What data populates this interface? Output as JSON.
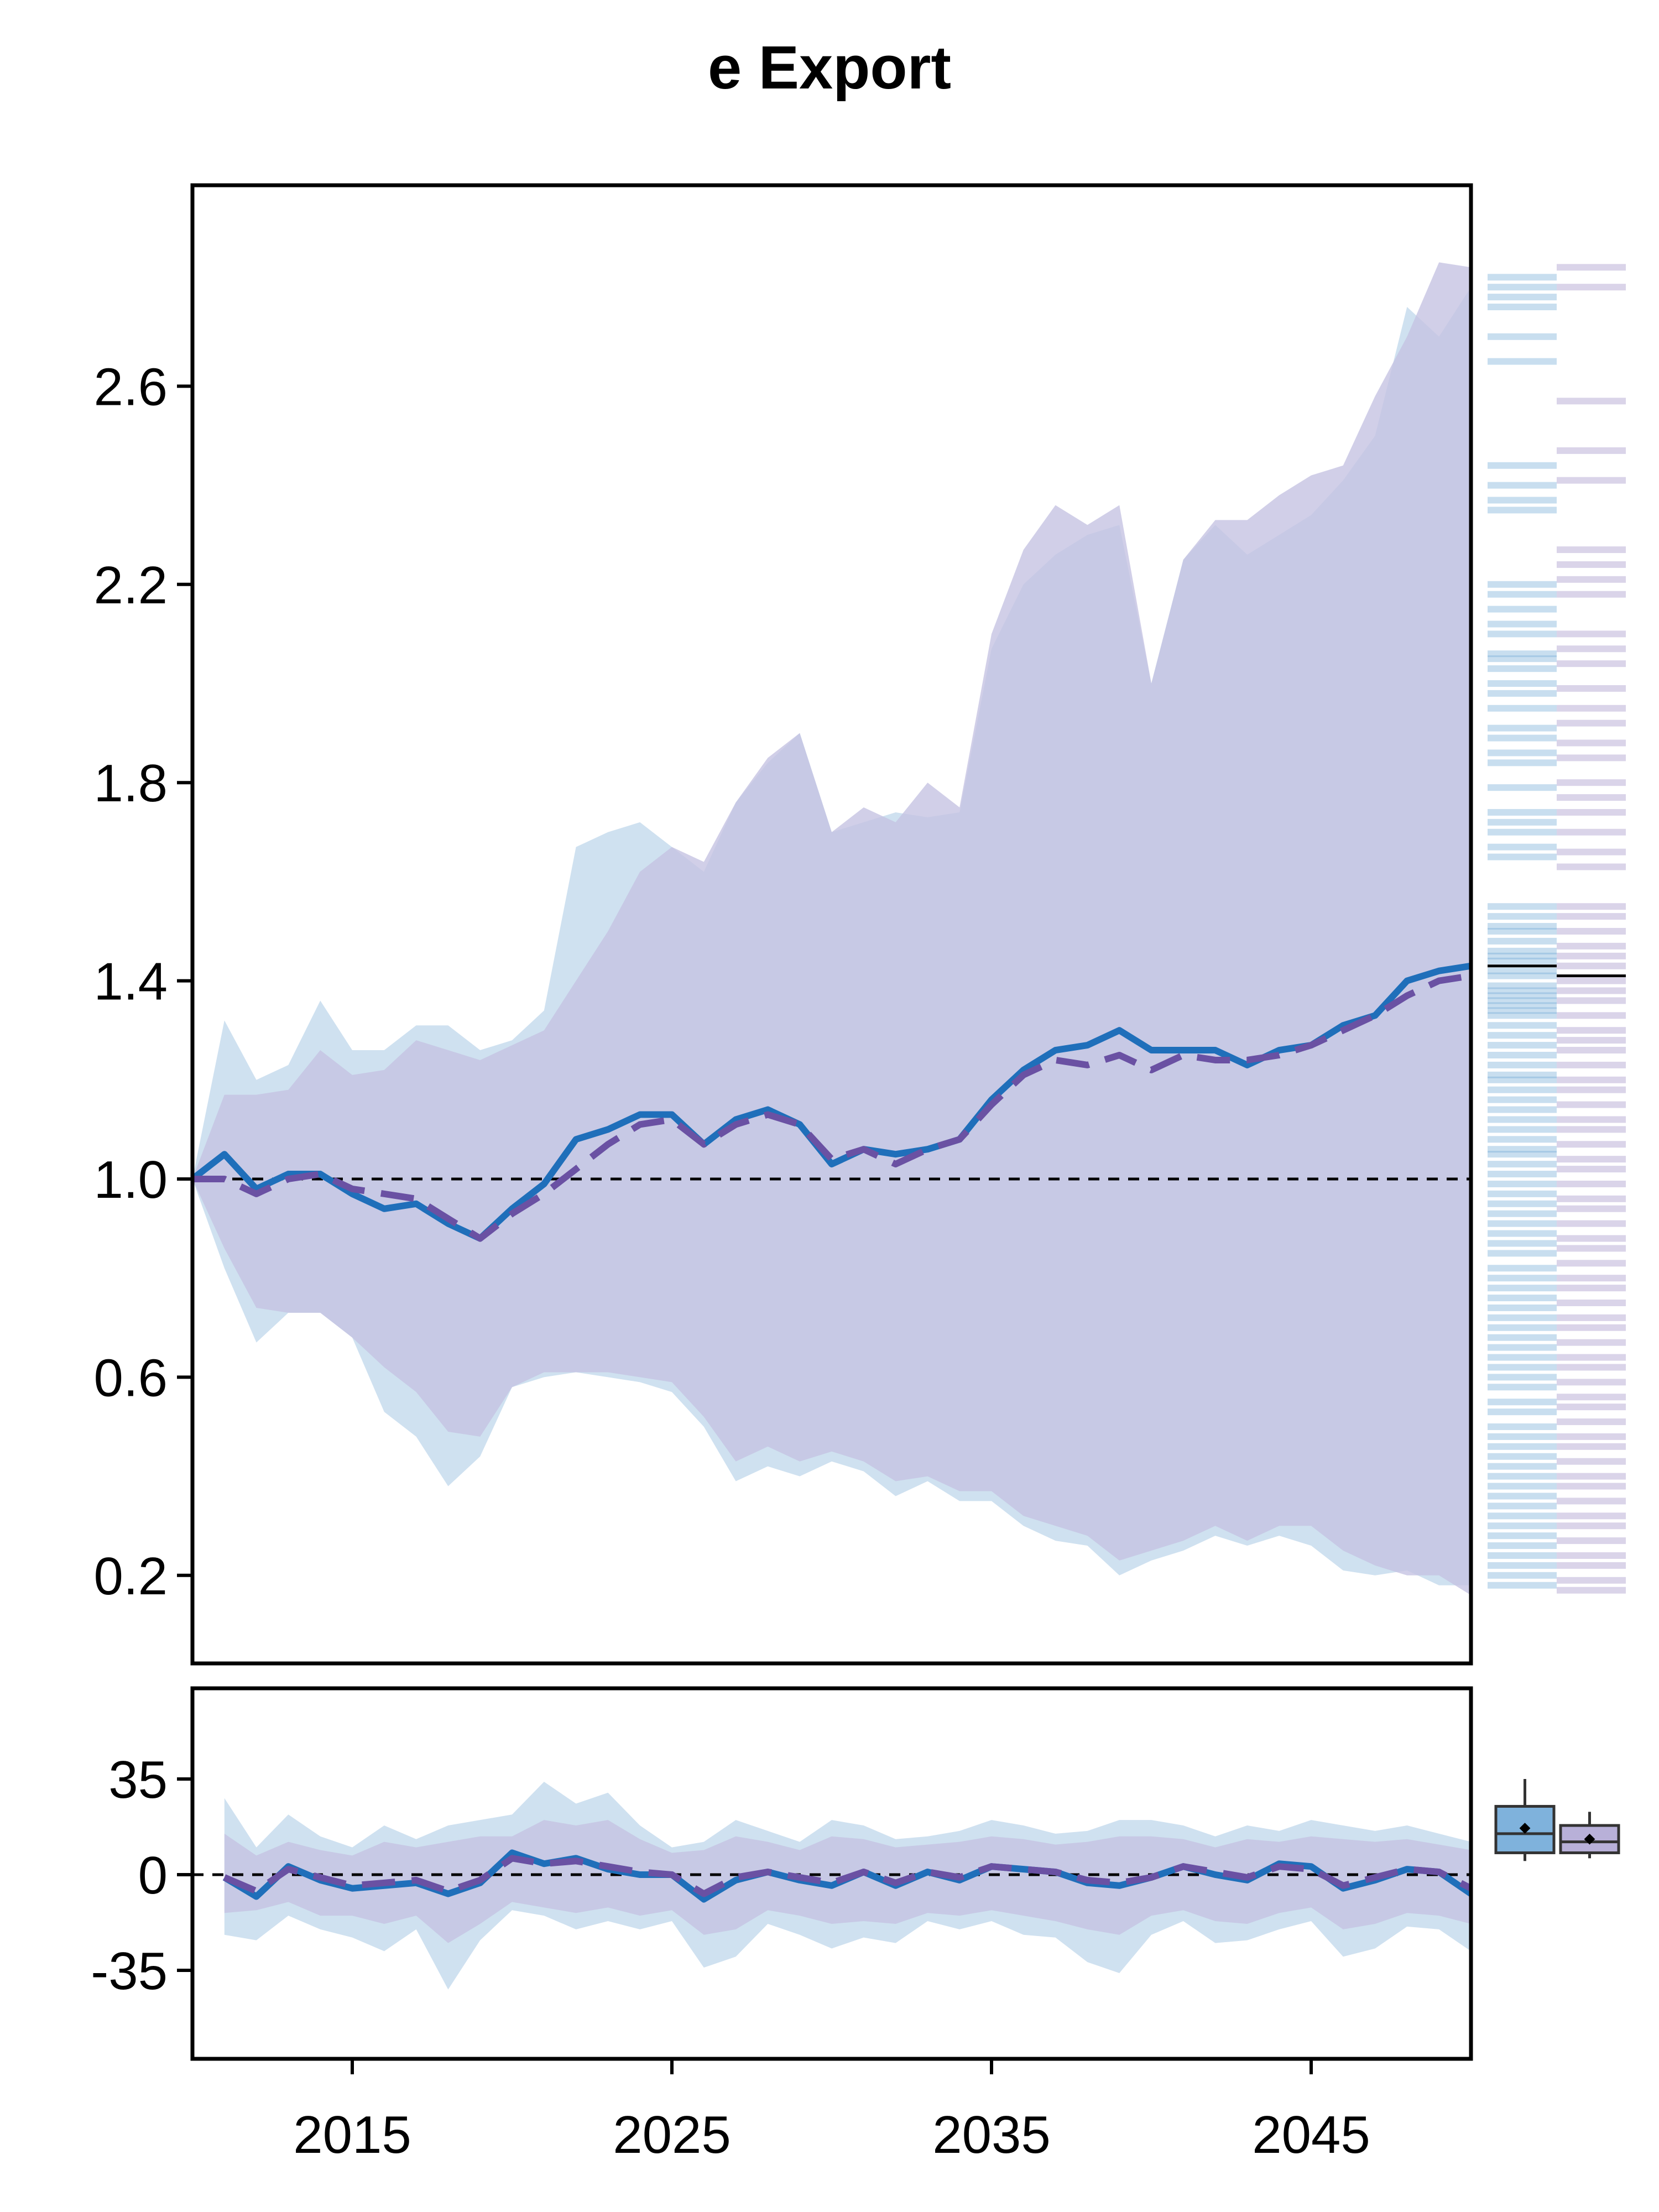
{
  "chart_data": [
    {
      "type": "line",
      "title": "e Export",
      "xlabel": "",
      "ylabel": "",
      "x": [
        2010,
        2011,
        2012,
        2013,
        2014,
        2015,
        2016,
        2017,
        2018,
        2019,
        2020,
        2021,
        2022,
        2023,
        2024,
        2025,
        2026,
        2027,
        2028,
        2029,
        2030,
        2031,
        2032,
        2033,
        2034,
        2035,
        2036,
        2037,
        2038,
        2039,
        2040,
        2041,
        2042,
        2043,
        2044,
        2045,
        2046,
        2047,
        2048,
        2049,
        2050
      ],
      "xlim": [
        2010,
        2050
      ],
      "ylim": [
        0.0,
        3.0
      ],
      "yticks": [
        0.2,
        0.6,
        1.0,
        1.4,
        1.8,
        2.2,
        2.6
      ],
      "ytick_labels": [
        "0.2",
        "0.6",
        "1.0",
        "1.4",
        "1.8",
        "2.2",
        "2.6"
      ],
      "reference_line": 1.0,
      "series": [
        {
          "color": "#1f6fba",
          "style": "solid",
          "values": [
            1.0,
            1.05,
            0.98,
            1.01,
            1.01,
            0.97,
            0.94,
            0.95,
            0.91,
            0.88,
            0.94,
            0.99,
            1.08,
            1.1,
            1.13,
            1.13,
            1.07,
            1.12,
            1.14,
            1.11,
            1.03,
            1.06,
            1.05,
            1.06,
            1.08,
            1.16,
            1.22,
            1.26,
            1.27,
            1.3,
            1.26,
            1.26,
            1.26,
            1.23,
            1.26,
            1.27,
            1.31,
            1.33,
            1.4,
            1.42,
            1.43
          ],
          "band_lower": [
            1.0,
            0.82,
            0.67,
            0.73,
            0.73,
            0.68,
            0.53,
            0.48,
            0.38,
            0.44,
            0.58,
            0.6,
            0.61,
            0.6,
            0.59,
            0.57,
            0.5,
            0.39,
            0.42,
            0.4,
            0.43,
            0.41,
            0.36,
            0.39,
            0.35,
            0.35,
            0.3,
            0.27,
            0.26,
            0.2,
            0.23,
            0.25,
            0.28,
            0.26,
            0.28,
            0.26,
            0.21,
            0.2,
            0.21,
            0.18,
            0.18
          ],
          "band_upper": [
            1.0,
            1.32,
            1.2,
            1.23,
            1.36,
            1.26,
            1.26,
            1.31,
            1.31,
            1.26,
            1.28,
            1.34,
            1.67,
            1.7,
            1.72,
            1.67,
            1.62,
            1.76,
            1.84,
            1.9,
            1.7,
            1.72,
            1.74,
            1.73,
            1.74,
            2.07,
            2.2,
            2.26,
            2.3,
            2.32,
            2.0,
            2.25,
            2.32,
            2.26,
            2.3,
            2.34,
            2.41,
            2.5,
            2.76,
            2.7,
            2.8
          ]
        },
        {
          "color": "#6a51a3",
          "style": "dashed",
          "values": [
            1.0,
            1.0,
            0.97,
            1.0,
            1.01,
            0.98,
            0.97,
            0.96,
            0.92,
            0.88,
            0.93,
            0.97,
            1.02,
            1.07,
            1.11,
            1.12,
            1.07,
            1.11,
            1.13,
            1.11,
            1.04,
            1.06,
            1.03,
            1.06,
            1.08,
            1.15,
            1.21,
            1.24,
            1.23,
            1.25,
            1.22,
            1.25,
            1.24,
            1.24,
            1.25,
            1.27,
            1.3,
            1.33,
            1.37,
            1.4,
            1.41
          ],
          "band_lower": [
            1.0,
            0.86,
            0.74,
            0.73,
            0.73,
            0.68,
            0.62,
            0.57,
            0.49,
            0.48,
            0.58,
            0.61,
            0.61,
            0.61,
            0.6,
            0.59,
            0.52,
            0.43,
            0.46,
            0.43,
            0.45,
            0.43,
            0.39,
            0.4,
            0.37,
            0.37,
            0.32,
            0.3,
            0.28,
            0.23,
            0.25,
            0.27,
            0.3,
            0.27,
            0.3,
            0.3,
            0.25,
            0.22,
            0.2,
            0.2,
            0.16
          ],
          "band_upper": [
            1.0,
            1.17,
            1.17,
            1.18,
            1.26,
            1.21,
            1.22,
            1.28,
            1.26,
            1.24,
            1.27,
            1.3,
            1.4,
            1.5,
            1.62,
            1.67,
            1.64,
            1.76,
            1.85,
            1.9,
            1.7,
            1.75,
            1.72,
            1.8,
            1.75,
            2.1,
            2.27,
            2.36,
            2.32,
            2.36,
            2.0,
            2.25,
            2.33,
            2.33,
            2.38,
            2.42,
            2.44,
            2.58,
            2.7,
            2.85,
            2.84
          ]
        }
      ],
      "side_strips": [
        {
          "color": "#1f6fba",
          "median": 1.43,
          "samples": [
            2.82,
            2.8,
            2.78,
            2.76,
            2.7,
            2.65,
            2.44,
            2.4,
            2.37,
            2.35,
            2.2,
            2.18,
            2.15,
            2.12,
            2.1,
            2.06,
            2.05,
            2.03,
            2.0,
            1.98,
            1.95,
            1.91,
            1.89,
            1.86,
            1.84,
            1.79,
            1.74,
            1.72,
            1.7,
            1.67,
            1.65,
            1.55,
            1.53,
            1.51,
            1.5,
            1.48,
            1.46,
            1.45,
            1.44,
            1.42,
            1.41,
            1.39,
            1.38,
            1.37,
            1.36,
            1.35,
            1.34,
            1.33,
            1.31,
            1.29,
            1.27,
            1.25,
            1.23,
            1.21,
            1.2,
            1.18,
            1.16,
            1.14,
            1.12,
            1.1,
            1.08,
            1.06,
            1.05,
            1.03,
            1.01,
            0.99,
            0.97,
            0.95,
            0.93,
            0.91,
            0.89,
            0.87,
            0.85,
            0.82,
            0.8,
            0.78,
            0.76,
            0.74,
            0.72,
            0.7,
            0.68,
            0.66,
            0.64,
            0.62,
            0.6,
            0.58,
            0.55,
            0.53,
            0.5,
            0.48,
            0.46,
            0.44,
            0.42,
            0.4,
            0.38,
            0.36,
            0.34,
            0.32,
            0.3,
            0.28,
            0.26,
            0.24,
            0.22,
            0.2,
            0.18
          ]
        },
        {
          "color": "#6a51a3",
          "median": 1.41,
          "samples": [
            2.84,
            2.8,
            2.57,
            2.47,
            2.41,
            2.27,
            2.24,
            2.21,
            2.18,
            2.1,
            2.07,
            2.04,
            1.99,
            1.95,
            1.92,
            1.88,
            1.85,
            1.8,
            1.77,
            1.74,
            1.7,
            1.66,
            1.63,
            1.55,
            1.53,
            1.5,
            1.47,
            1.45,
            1.43,
            1.4,
            1.38,
            1.36,
            1.33,
            1.3,
            1.28,
            1.26,
            1.23,
            1.2,
            1.18,
            1.15,
            1.12,
            1.1,
            1.07,
            1.04,
            1.02,
            0.99,
            0.96,
            0.94,
            0.91,
            0.88,
            0.86,
            0.83,
            0.8,
            0.78,
            0.75,
            0.72,
            0.7,
            0.67,
            0.64,
            0.62,
            0.59,
            0.56,
            0.54,
            0.51,
            0.48,
            0.46,
            0.43,
            0.4,
            0.38,
            0.35,
            0.32,
            0.3,
            0.27,
            0.24,
            0.22,
            0.19,
            0.17
          ]
        }
      ]
    },
    {
      "type": "line",
      "title": "",
      "xlabel": "",
      "ylabel": "",
      "x": [
        2011,
        2012,
        2013,
        2014,
        2015,
        2016,
        2017,
        2018,
        2019,
        2020,
        2021,
        2022,
        2023,
        2024,
        2025,
        2026,
        2027,
        2028,
        2029,
        2030,
        2031,
        2032,
        2033,
        2034,
        2035,
        2036,
        2037,
        2038,
        2039,
        2040,
        2041,
        2042,
        2043,
        2044,
        2045,
        2046,
        2047,
        2048,
        2049,
        2050
      ],
      "xlim": [
        2010,
        2050
      ],
      "ylim": [
        -70,
        70
      ],
      "yticks": [
        -35,
        0,
        35
      ],
      "ytick_labels": [
        "-35",
        "0",
        "35"
      ],
      "xticks": [
        2015,
        2025,
        2035,
        2045
      ],
      "xtick_labels": [
        "2015",
        "2025",
        "2035",
        "2045"
      ],
      "reference_line": 0,
      "series": [
        {
          "color": "#1f6fba",
          "style": "solid",
          "values": [
            -1,
            -8,
            3,
            -2,
            -5,
            -4,
            -3,
            -7,
            -3,
            8,
            4,
            6,
            2,
            0,
            0,
            -9,
            -2,
            1,
            -2,
            -4,
            1,
            -4,
            1,
            -2,
            3,
            2,
            1,
            -3,
            -4,
            -1,
            3,
            0,
            -2,
            4,
            3,
            -5,
            -2,
            2,
            1,
            -7
          ],
          "band_lower": [
            -22,
            -24,
            -15,
            -20,
            -23,
            -28,
            -20,
            -42,
            -24,
            -13,
            -15,
            -20,
            -17,
            -20,
            -17,
            -34,
            -30,
            -18,
            -22,
            -27,
            -23,
            -25,
            -17,
            -20,
            -17,
            -22,
            -23,
            -32,
            -36,
            -22,
            -17,
            -25,
            -24,
            -20,
            -17,
            -30,
            -27,
            -19,
            -20,
            -28
          ],
          "band_upper": [
            28,
            10,
            22,
            14,
            10,
            18,
            13,
            18,
            20,
            22,
            34,
            26,
            30,
            18,
            10,
            12,
            20,
            16,
            12,
            20,
            18,
            13,
            14,
            16,
            20,
            18,
            15,
            16,
            20,
            20,
            18,
            14,
            18,
            16,
            20,
            18,
            16,
            18,
            15,
            12
          ]
        },
        {
          "color": "#6a51a3",
          "style": "dashed",
          "values": [
            -1,
            -6,
            2,
            -1,
            -4,
            -3,
            -2,
            -6,
            -2,
            6,
            4,
            5,
            3,
            1,
            0,
            -7,
            -1,
            1,
            -1,
            -3,
            1,
            -3,
            1,
            -1,
            3,
            2,
            1,
            -2,
            -3,
            -1,
            3,
            1,
            -1,
            3,
            2,
            -4,
            -1,
            2,
            1,
            -5
          ],
          "band_lower": [
            -14,
            -13,
            -10,
            -15,
            -15,
            -18,
            -15,
            -25,
            -18,
            -10,
            -12,
            -14,
            -12,
            -15,
            -13,
            -22,
            -20,
            -13,
            -15,
            -18,
            -17,
            -18,
            -14,
            -15,
            -13,
            -15,
            -17,
            -20,
            -22,
            -15,
            -13,
            -17,
            -18,
            -14,
            -12,
            -20,
            -18,
            -14,
            -15,
            -18
          ],
          "band_upper": [
            15,
            7,
            12,
            9,
            7,
            12,
            10,
            12,
            14,
            14,
            20,
            18,
            20,
            13,
            8,
            9,
            14,
            12,
            9,
            14,
            13,
            10,
            11,
            12,
            14,
            13,
            11,
            12,
            14,
            14,
            13,
            10,
            13,
            12,
            14,
            13,
            12,
            13,
            11,
            9
          ]
        }
      ],
      "side_boxes": [
        {
          "color": "#1f6fba",
          "min": 5,
          "q1": 8,
          "median": 15,
          "q3": 25,
          "max": 35,
          "mean": 17
        },
        {
          "color": "#6a51a3",
          "min": 6,
          "q1": 8,
          "median": 12,
          "q3": 18,
          "max": 23,
          "mean": 13
        }
      ]
    }
  ]
}
